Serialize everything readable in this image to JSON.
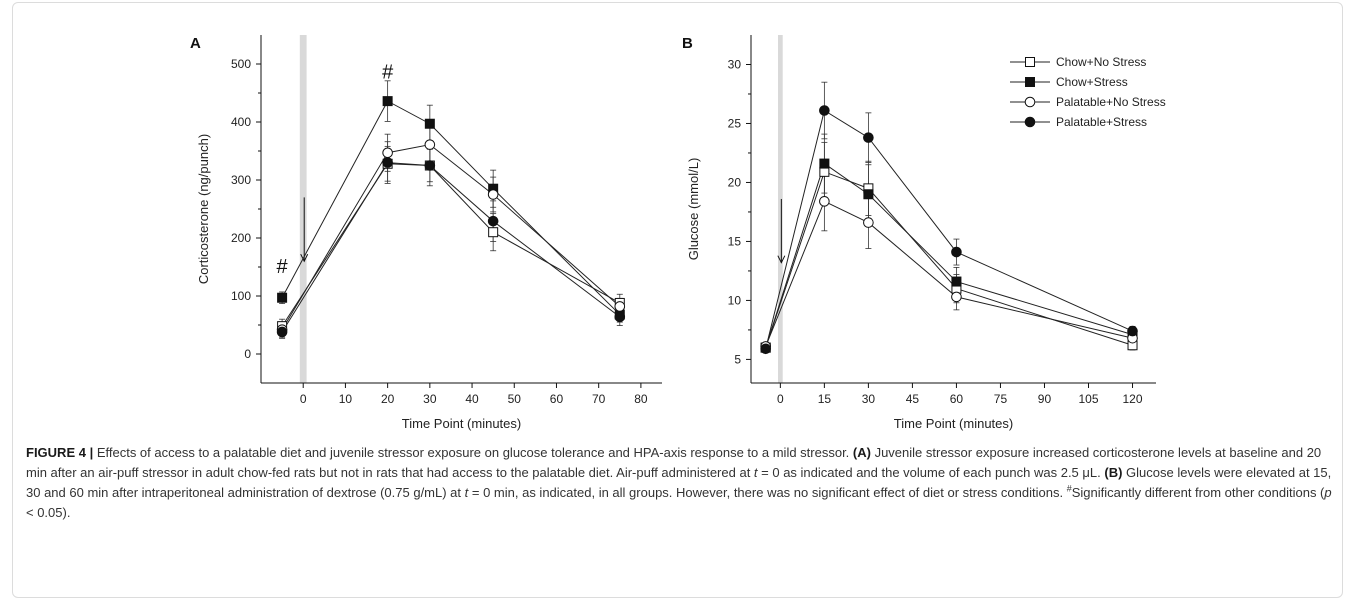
{
  "chart_data": [
    {
      "type": "line",
      "panel_label": "A",
      "xlabel": "Time Point (minutes)",
      "ylabel": "Corticosterone (ng/punch)",
      "xlim": [
        -10,
        85
      ],
      "ylim": [
        -50,
        550
      ],
      "xticks": [
        0,
        10,
        20,
        30,
        40,
        50,
        60,
        70,
        80
      ],
      "yticks": [
        0,
        100,
        200,
        300,
        400,
        500
      ],
      "shaded_band_x": [
        -0.8,
        0.8
      ],
      "arrow": {
        "x": 0,
        "y_from": 270,
        "y_to": 160
      },
      "significance": [
        {
          "x": -5,
          "y": 140,
          "text": "#"
        },
        {
          "x": 20,
          "y": 475,
          "text": "#"
        }
      ],
      "series": [
        {
          "name": "Chow+No Stress",
          "marker": "open-square",
          "x": [
            -5,
            20,
            30,
            45,
            75
          ],
          "y": [
            48,
            328,
            325,
            210,
            88
          ],
          "err": [
            12,
            30,
            28,
            32,
            15
          ]
        },
        {
          "name": "Chow+Stress",
          "marker": "filled-square",
          "x": [
            -5,
            20,
            30,
            45,
            75
          ],
          "y": [
            97,
            436,
            397,
            285,
            68
          ],
          "err": [
            10,
            35,
            32,
            32,
            13
          ]
        },
        {
          "name": "Palatable+No Stress",
          "marker": "open-circle",
          "x": [
            -5,
            20,
            30,
            45,
            75
          ],
          "y": [
            42,
            347,
            361,
            275,
            82
          ],
          "err": [
            13,
            32,
            30,
            30,
            14
          ]
        },
        {
          "name": "Palatable+Stress",
          "marker": "filled-circle",
          "x": [
            -5,
            20,
            30,
            45,
            75
          ],
          "y": [
            38,
            330,
            325,
            229,
            64
          ],
          "err": [
            11,
            36,
            35,
            35,
            15
          ]
        }
      ]
    },
    {
      "type": "line",
      "panel_label": "B",
      "xlabel": "Time Point (minutes)",
      "ylabel": "Glucose (mmol/L)",
      "xlim": [
        -10,
        128
      ],
      "ylim": [
        3,
        32.5
      ],
      "xticks": [
        0,
        15,
        30,
        45,
        60,
        75,
        90,
        105,
        120
      ],
      "yticks": [
        5,
        10,
        15,
        20,
        25,
        30
      ],
      "shaded_band_x": [
        -0.8,
        0.8
      ],
      "arrow": {
        "x": 0,
        "y_from": 18.6,
        "y_to": 13.2
      },
      "legend": {
        "placement": "top-right"
      },
      "series": [
        {
          "name": "Chow+No Stress",
          "marker": "open-square",
          "x": [
            -5,
            15,
            30,
            60,
            120
          ],
          "y": [
            6.0,
            20.9,
            19.5,
            11.0,
            6.2
          ],
          "err": [
            0.3,
            2.5,
            2.3,
            1.2,
            0.4
          ]
        },
        {
          "name": "Chow+Stress",
          "marker": "filled-square",
          "x": [
            -5,
            15,
            30,
            60,
            120
          ],
          "y": [
            6.0,
            21.6,
            19.0,
            11.6,
            7.1
          ],
          "err": [
            0.3,
            2.5,
            2.5,
            1.2,
            0.4
          ]
        },
        {
          "name": "Palatable+No Stress",
          "marker": "open-circle",
          "x": [
            -5,
            15,
            30,
            60,
            120
          ],
          "y": [
            6.1,
            18.4,
            16.6,
            10.3,
            6.8
          ],
          "err": [
            0.3,
            2.5,
            2.2,
            1.1,
            0.4
          ]
        },
        {
          "name": "Palatable+Stress",
          "marker": "filled-circle",
          "x": [
            -5,
            15,
            30,
            60,
            120
          ],
          "y": [
            5.9,
            26.1,
            23.8,
            14.1,
            7.4
          ],
          "err": [
            0.3,
            2.4,
            2.1,
            1.1,
            0.4
          ]
        }
      ]
    }
  ],
  "caption": {
    "heading": "FIGURE 4 |",
    "intro": " Effects of access to a palatable diet and juvenile stressor exposure on glucose tolerance and HPA-axis response to a mild stressor. ",
    "label_a": "(A)",
    "text_a1": " Juvenile stressor exposure increased corticosterone levels at baseline and 20 min after an air-puff stressor in adult chow-fed rats but not in rats that had access to the palatable diet. Air-puff administered at ",
    "t_var_1": "t",
    "text_a2": " = 0 as indicated and the volume of each punch was 2.5 μL. ",
    "label_b": "(B)",
    "text_b1": " Glucose levels were elevated at 15, 30 and 60 min after intraperitoneal administration of dextrose (0.75 g/mL) at ",
    "t_var_2": "t",
    "text_b2": " = 0 min, as indicated, in all groups. However, there was no significant effect of diet or stress conditions. ",
    "sig_mark": "#",
    "sig_text": "Significantly different from other conditions (",
    "p_var": "p",
    "p_text": " < 0.05)."
  }
}
